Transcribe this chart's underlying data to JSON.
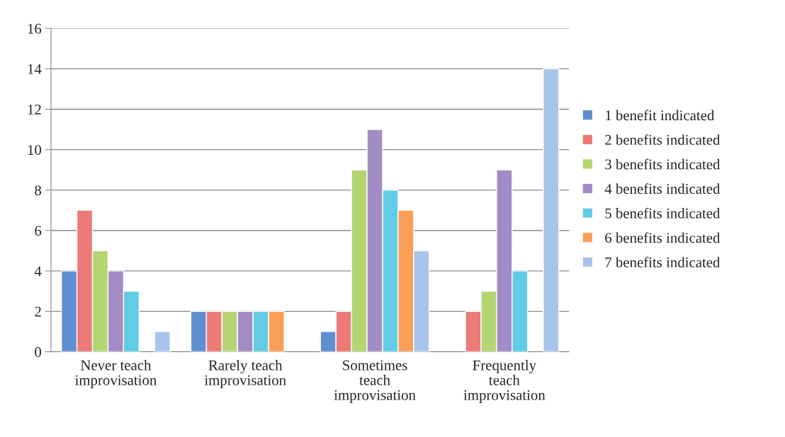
{
  "chart_data": {
    "type": "bar",
    "categories": [
      "Never teach\nimprovisation",
      "Rarely teach\nimprovisation",
      "Sometimes\nteach\nimprovisation",
      "Frequently\nteach\nimprovisation"
    ],
    "series": [
      {
        "name": "1 benefit indicated",
        "color": "#5f8fd0",
        "values": [
          4,
          2,
          1,
          null
        ]
      },
      {
        "name": "2 benefits indicated",
        "color": "#ec7a76",
        "values": [
          7,
          2,
          2,
          2
        ]
      },
      {
        "name": "3 benefits indicated",
        "color": "#b3d672",
        "values": [
          5,
          2,
          9,
          3
        ]
      },
      {
        "name": "4 benefits indicated",
        "color": "#a38cc6",
        "values": [
          4,
          2,
          11,
          9
        ]
      },
      {
        "name": "5 benefits indicated",
        "color": "#62cbe6",
        "values": [
          3,
          2,
          8,
          4
        ]
      },
      {
        "name": "6 benefits indicated",
        "color": "#fa9f55",
        "values": [
          null,
          2,
          7,
          null
        ]
      },
      {
        "name": "7 benefits indicated",
        "color": "#a9c4ec",
        "values": [
          1,
          null,
          5,
          14
        ]
      }
    ],
    "ylim": [
      0,
      16
    ],
    "yticks": [
      0,
      2,
      4,
      6,
      8,
      10,
      12,
      14,
      16
    ],
    "grid": "y",
    "legend": "right"
  }
}
